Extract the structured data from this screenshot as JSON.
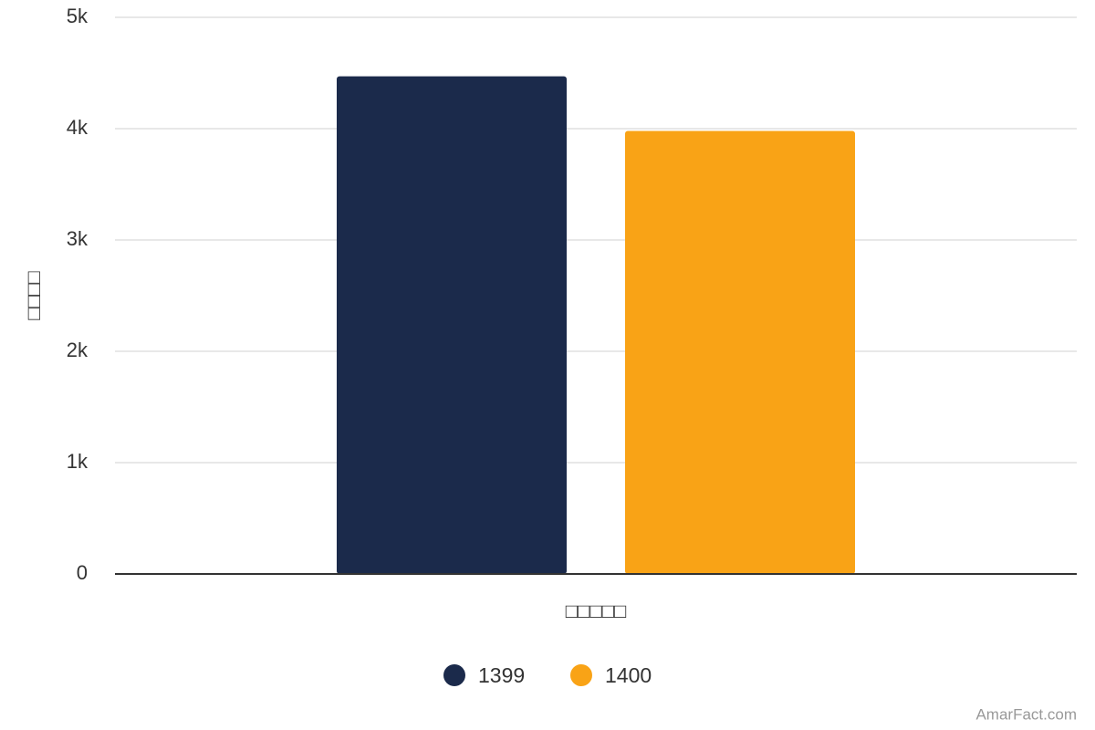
{
  "chart_data": {
    "type": "bar",
    "y_label": "□□□□",
    "categories": [
      "□□□□□"
    ],
    "series": [
      {
        "name": "1399",
        "color": "#1b2a4b",
        "values": [
          4470
        ]
      },
      {
        "name": "1400",
        "color": "#f9a316",
        "values": [
          3980
        ]
      }
    ],
    "ylim": [
      0,
      5000
    ],
    "yticks": [
      0,
      {
        "value": 1000,
        "label": "1k"
      },
      {
        "value": 2000,
        "label": "2k"
      },
      {
        "value": 3000,
        "label": "3k"
      },
      {
        "value": 4000,
        "label": "4k"
      },
      {
        "value": 5000,
        "label": "5k"
      }
    ],
    "grid": true,
    "legend": "bottom",
    "credit": "AmarFact.com"
  }
}
